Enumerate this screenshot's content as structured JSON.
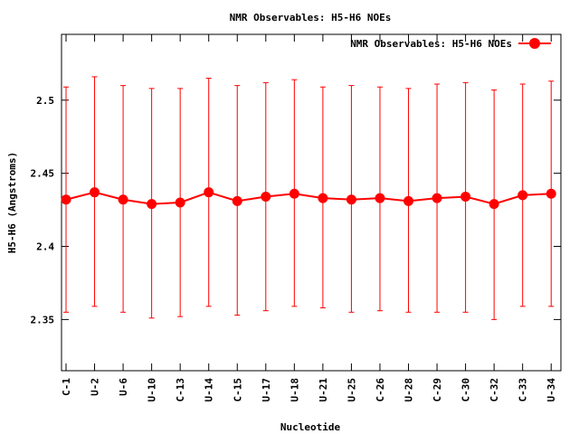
{
  "chart_data": {
    "type": "line",
    "title": "NMR Observables: H5-H6 NOEs",
    "xlabel": "Nucleotide",
    "ylabel": "H5-H6 (Angstroms)",
    "ylim": [
      2.315,
      2.545
    ],
    "yticks": [
      {
        "value": 2.35,
        "label": "2.35"
      },
      {
        "value": 2.4,
        "label": "2.4"
      },
      {
        "value": 2.45,
        "label": "2.45"
      },
      {
        "value": 2.5,
        "label": "2.5"
      }
    ],
    "categories": [
      "C-1",
      "U-2",
      "U-6",
      "U-10",
      "C-13",
      "U-14",
      "C-15",
      "U-17",
      "U-18",
      "U-21",
      "U-25",
      "C-26",
      "U-28",
      "C-29",
      "C-30",
      "C-32",
      "C-33",
      "U-34"
    ],
    "grid": false,
    "legend_position": "top-right",
    "series": [
      {
        "name": "NMR Observables: H5-H6 NOEs",
        "color": "#ff0000",
        "values": [
          2.432,
          2.437,
          2.432,
          2.429,
          2.43,
          2.437,
          2.431,
          2.434,
          2.436,
          2.433,
          2.432,
          2.433,
          2.431,
          2.433,
          2.434,
          2.429,
          2.435,
          2.436
        ],
        "err_low": [
          2.355,
          2.359,
          2.355,
          2.351,
          2.352,
          2.359,
          2.353,
          2.356,
          2.359,
          2.358,
          2.355,
          2.356,
          2.355,
          2.355,
          2.355,
          2.35,
          2.359,
          2.359
        ],
        "err_high": [
          2.509,
          2.516,
          2.51,
          2.508,
          2.508,
          2.515,
          2.51,
          2.512,
          2.514,
          2.509,
          2.51,
          2.509,
          2.508,
          2.511,
          2.512,
          2.507,
          2.511,
          2.513
        ]
      }
    ]
  }
}
